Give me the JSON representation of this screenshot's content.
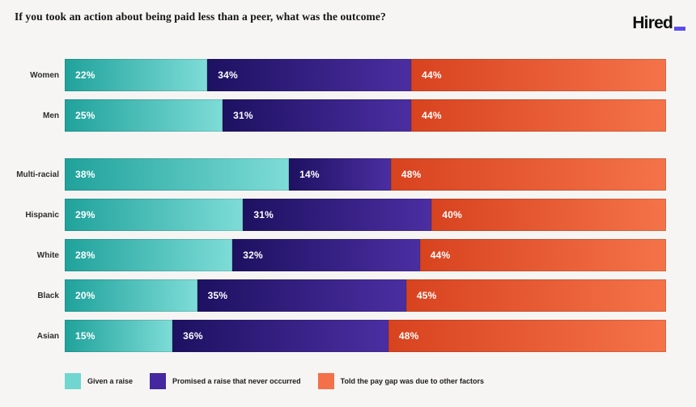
{
  "header": {
    "title": "If you took an action about being paid less than a peer, what was the outcome?",
    "logo_text": "Hired",
    "logo_underscore_color": "#5a4df0"
  },
  "chart_data": {
    "type": "bar",
    "variant": "horizontal-stacked-percentage",
    "title": "If you took an action about being paid less than a peer, what was the outcome?",
    "categories": [
      "Women",
      "Men",
      "Multi-racial",
      "Hispanic",
      "White",
      "Black",
      "Asian"
    ],
    "group_break_indices": [
      2
    ],
    "value_suffix": "%",
    "series": [
      {
        "name": "Given a raise",
        "legend_color": "#72d6d0",
        "gradient": [
          "#1fa29b",
          "#7edcd7"
        ],
        "values": [
          22,
          25,
          38,
          29,
          28,
          20,
          15
        ]
      },
      {
        "name": "Promised a raise that never occurred",
        "legend_color": "#45279f",
        "gradient": [
          "#1d1161",
          "#4b2ea2"
        ],
        "values": [
          34,
          31,
          14,
          31,
          32,
          35,
          36
        ]
      },
      {
        "name": "Told the pay gap was due to other factors",
        "legend_color": "#f3704a",
        "gradient": [
          "#d8431f",
          "#f57349"
        ],
        "values": [
          44,
          44,
          48,
          40,
          44,
          45,
          48
        ]
      }
    ],
    "legend_position": "bottom",
    "background_color": "#f6f5f4",
    "xlim": [
      0,
      100
    ],
    "grid": false
  }
}
